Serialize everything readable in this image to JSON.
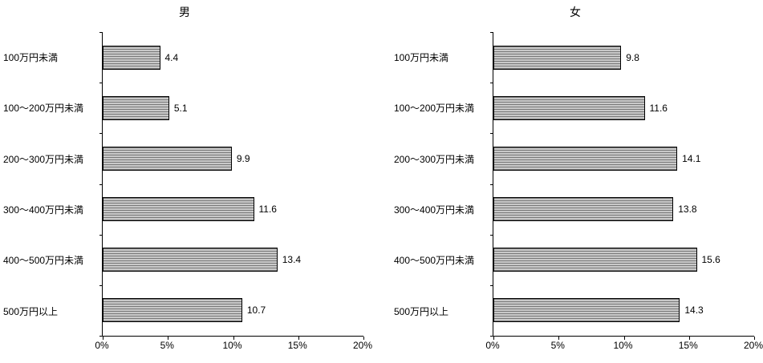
{
  "chart_data": [
    {
      "type": "bar",
      "orientation": "horizontal",
      "title": "男",
      "categories": [
        "100万円未満",
        "100〜200万円未満",
        "200〜300万円未満",
        "300〜400万円未満",
        "400〜500万円未満",
        "500万円以上"
      ],
      "values": [
        4.4,
        5.1,
        9.9,
        11.6,
        13.4,
        10.7
      ],
      "value_labels": [
        "4.4",
        "5.1",
        "9.9",
        "11.6",
        "13.4",
        "10.7"
      ],
      "xlabel": "",
      "ylabel": "",
      "xlim": [
        0,
        20
      ],
      "xmax": 20,
      "x_ticks": [
        "0%",
        "5%",
        "10%",
        "15%",
        "20%"
      ],
      "grid": false,
      "legend": false,
      "bar_fill": "#c9c9c9",
      "bar_stripe": "#787878",
      "bar_border": "#000000"
    },
    {
      "type": "bar",
      "orientation": "horizontal",
      "title": "女",
      "categories": [
        "100万円未満",
        "100〜200万円未満",
        "200〜300万円未満",
        "300〜400万円未満",
        "400〜500万円未満",
        "500万円以上"
      ],
      "values": [
        9.8,
        11.6,
        14.1,
        13.8,
        15.6,
        14.3
      ],
      "value_labels": [
        "9.8",
        "11.6",
        "14.1",
        "13.8",
        "15.6",
        "14.3"
      ],
      "xlabel": "",
      "ylabel": "",
      "xlim": [
        0,
        20
      ],
      "xmax": 20,
      "x_ticks": [
        "0%",
        "5%",
        "10%",
        "15%",
        "20%"
      ],
      "grid": false,
      "legend": false,
      "bar_fill": "#c9c9c9",
      "bar_stripe": "#787878",
      "bar_border": "#000000"
    }
  ]
}
